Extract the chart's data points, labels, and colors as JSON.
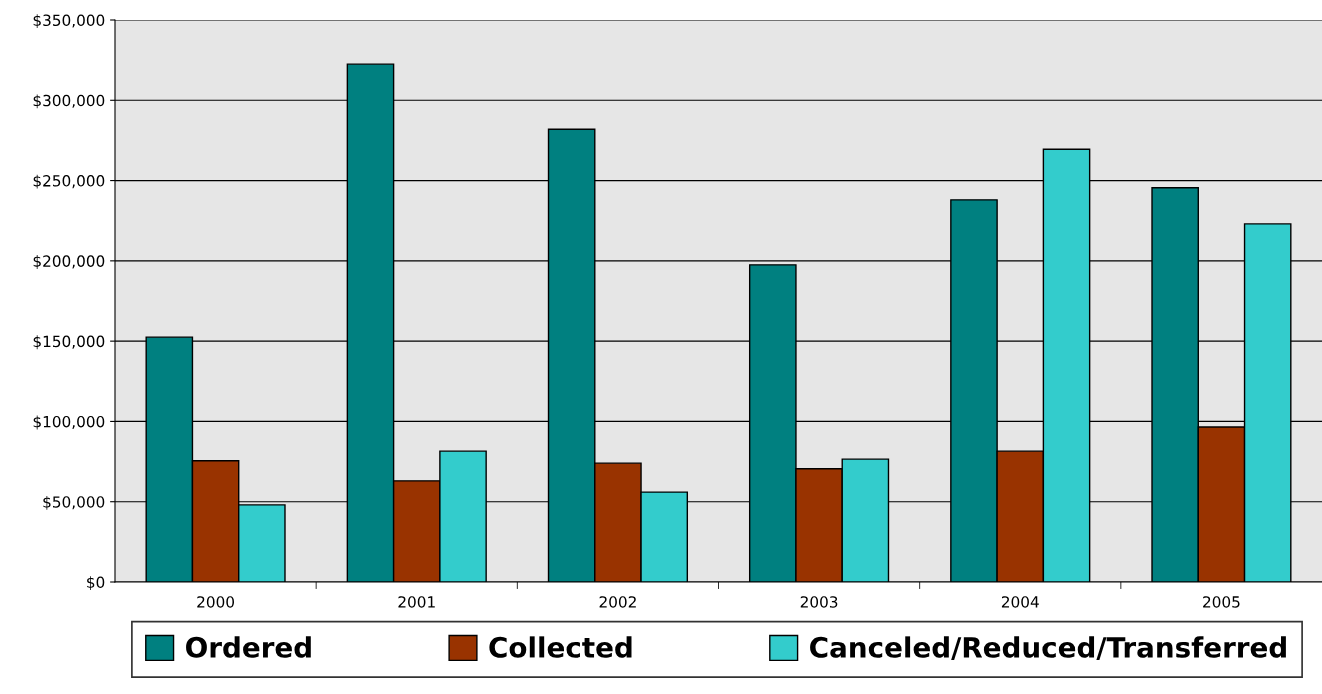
{
  "chart_data": {
    "type": "bar",
    "categories": [
      "2000",
      "2001",
      "2002",
      "2003",
      "2004",
      "2005"
    ],
    "series": [
      {
        "name": "Ordered",
        "color": "#008080",
        "values": [
          152500,
          322500,
          282000,
          197500,
          238000,
          245500
        ]
      },
      {
        "name": "Collected",
        "color": "#993300",
        "values": [
          75500,
          63000,
          74000,
          70500,
          81500,
          96500
        ]
      },
      {
        "name": "Canceled/Reduced/Transferred",
        "color": "#33cccc",
        "values": [
          48000,
          81500,
          56000,
          76500,
          269500,
          223000
        ]
      }
    ],
    "ylim": [
      0,
      350000
    ],
    "yticks": [
      {
        "value": 0,
        "label": "$0"
      },
      {
        "value": 50000,
        "label": "$50,000"
      },
      {
        "value": 100000,
        "label": "$100,000"
      },
      {
        "value": 150000,
        "label": "$150,000"
      },
      {
        "value": 200000,
        "label": "$200,000"
      },
      {
        "value": 250000,
        "label": "$250,000"
      },
      {
        "value": 300000,
        "label": "$300,000"
      },
      {
        "value": 350000,
        "label": "$350,000"
      }
    ],
    "grid": "y",
    "legend": "bottom"
  }
}
